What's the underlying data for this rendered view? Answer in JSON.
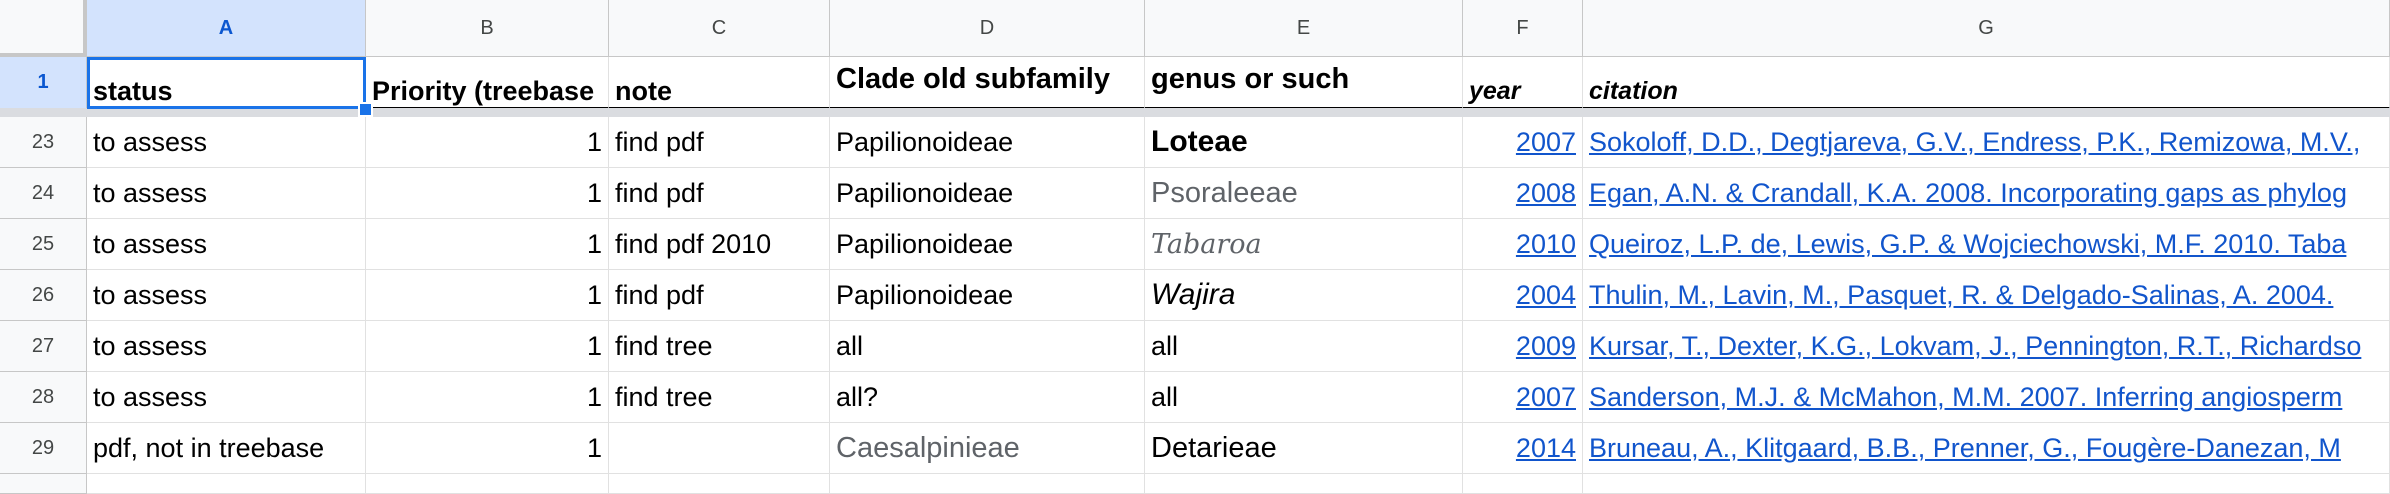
{
  "columns": [
    "A",
    "B",
    "C",
    "D",
    "E",
    "F",
    "G"
  ],
  "header_row": {
    "row_number": "1",
    "status": "status",
    "priority": "Priority (treebase",
    "note": "note",
    "clade": "Clade old subfamily",
    "genus": "genus or such",
    "year": "year",
    "citation": "citation"
  },
  "rows": [
    {
      "n": "23",
      "status": "to assess",
      "priority": "1",
      "note": "find pdf",
      "clade": "Papilionoideae",
      "genus": "Loteae",
      "year": "2007",
      "citation": "Sokoloff, D.D., Degtjareva, G.V., Endress, P.K., Remizowa, M.V., "
    },
    {
      "n": "24",
      "status": "to assess",
      "priority": "1",
      "note": "find pdf",
      "clade": "Papilionoideae",
      "genus": "Psoraleeae",
      "year": "2008",
      "citation": "Egan, A.N. & Crandall, K.A. 2008. Incorporating gaps as phylog"
    },
    {
      "n": "25",
      "status": "to assess",
      "priority": "1",
      "note": "find pdf 2010",
      "clade": "Papilionoideae",
      "genus": "Tabaroa",
      "year": "2010",
      "citation": "Queiroz, L.P. de, Lewis, G.P. & Wojciechowski, M.F. 2010. Taba"
    },
    {
      "n": "26",
      "status": "to assess",
      "priority": "1",
      "note": "find pdf",
      "clade": "Papilionoideae",
      "genus": "Wajira",
      "year": "2004",
      "citation": "Thulin, M., Lavin, M., Pasquet, R. & Delgado-Salinas, A. 2004. "
    },
    {
      "n": "27",
      "status": "to assess",
      "priority": "1",
      "note": "find tree",
      "clade": "all",
      "genus": "all",
      "year": "2009",
      "citation": "Kursar, T., Dexter, K.G., Lokvam, J., Pennington, R.T., Richardso"
    },
    {
      "n": "28",
      "status": "to assess",
      "priority": "1",
      "note": "find tree",
      "clade": "all?",
      "genus": "all",
      "year": "2007",
      "citation": "Sanderson, M.J. & McMahon, M.M. 2007. Inferring angiosperm"
    },
    {
      "n": "29",
      "status": "pdf, not in treebase",
      "priority": "1",
      "note": "",
      "clade": "Caesalpinieae",
      "genus": "Detarieae",
      "year": "2014",
      "citation": "Bruneau, A., Klitgaard, B.B., Prenner, G., Fougère-Danezan, M"
    }
  ],
  "selection": {
    "cell": "A1",
    "accent": "#1a73e8"
  },
  "link_color": "#1155cc"
}
